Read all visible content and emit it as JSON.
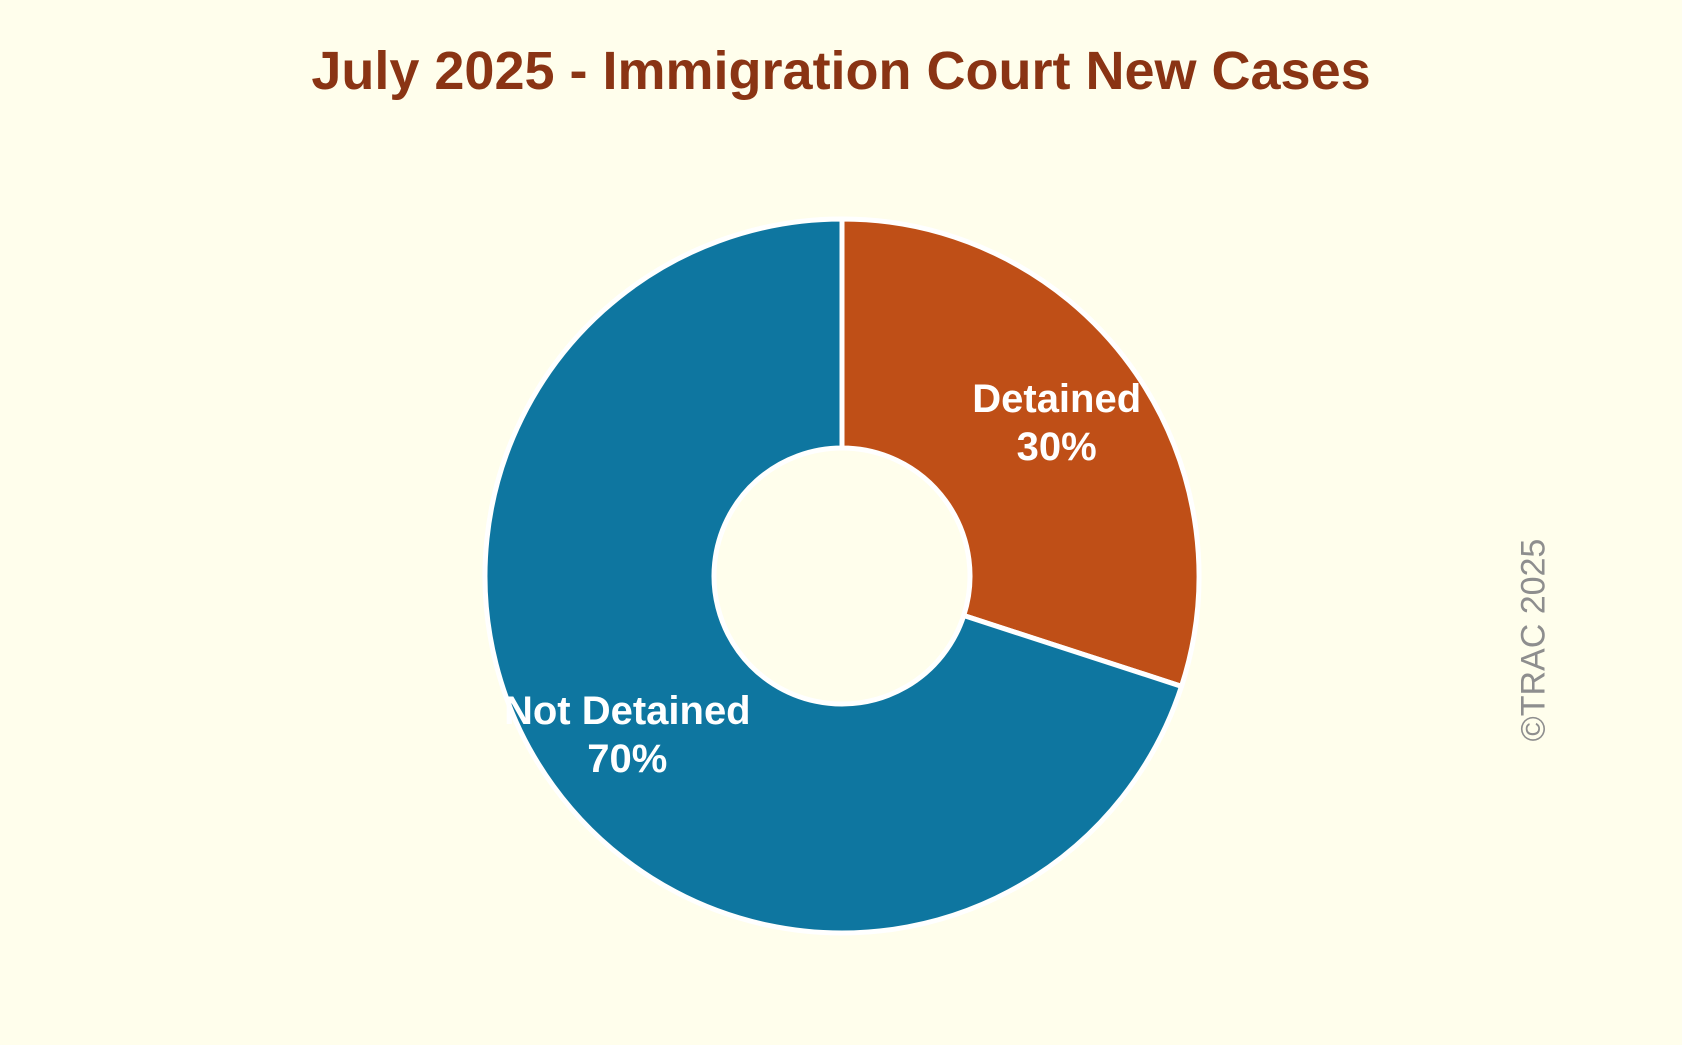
{
  "chart_data": {
    "type": "pie",
    "title": "July 2025 - Immigration Court New Cases",
    "hole": true,
    "slices": [
      {
        "label": "Detained",
        "value": 30,
        "display": "30%",
        "color": "#BF4F17"
      },
      {
        "label": "Not Detained",
        "value": 70,
        "display": "70%",
        "color": "#0E76A0"
      }
    ],
    "start_angle_deg": 0,
    "direction": "clockwise",
    "legend": "none"
  },
  "copyright": "©TRAC 2025",
  "colors": {
    "background": "#FFFEEC",
    "title": "#8A3414",
    "separator": "#FFFFFF",
    "watermark": "#8E8E8E"
  }
}
